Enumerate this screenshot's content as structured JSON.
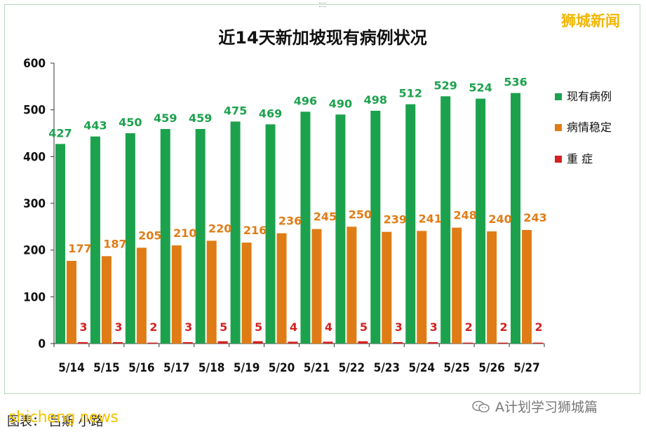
{
  "watermark_top": "狮城新闻",
  "caption": "图表：  吕斯  小路",
  "caption_overlay": "shicheng news",
  "brand": {
    "text": "A计划学习狮城篇",
    "icon": "wechat-icon"
  },
  "colors": {
    "green": "#1ca24d",
    "orange": "#e07c16",
    "red": "#d42020",
    "title": "#111111"
  },
  "chart_data": {
    "type": "bar",
    "title": "近14天新加坡现有病例状况",
    "xlabel": "",
    "ylabel": "",
    "ylim": [
      0,
      600
    ],
    "yticks": [
      0,
      100,
      200,
      300,
      400,
      500,
      600
    ],
    "categories": [
      "5/14",
      "5/15",
      "5/16",
      "5/17",
      "5/18",
      "5/19",
      "5/20",
      "5/21",
      "5/22",
      "5/23",
      "5/24",
      "5/25",
      "5/26",
      "5/27"
    ],
    "series": [
      {
        "name": "现有病例",
        "color": "#1ca24d",
        "values": [
          427,
          443,
          450,
          459,
          459,
          475,
          469,
          496,
          490,
          498,
          512,
          529,
          524,
          536
        ]
      },
      {
        "name": "病情稳定",
        "color": "#e07c16",
        "values": [
          177,
          187,
          205,
          210,
          220,
          216,
          236,
          245,
          250,
          239,
          241,
          248,
          240,
          243
        ]
      },
      {
        "name": "重  症",
        "color": "#d42020",
        "values": [
          3,
          3,
          2,
          3,
          5,
          5,
          4,
          4,
          5,
          3,
          3,
          2,
          2,
          2
        ]
      }
    ],
    "legend": "right",
    "grid": false
  }
}
